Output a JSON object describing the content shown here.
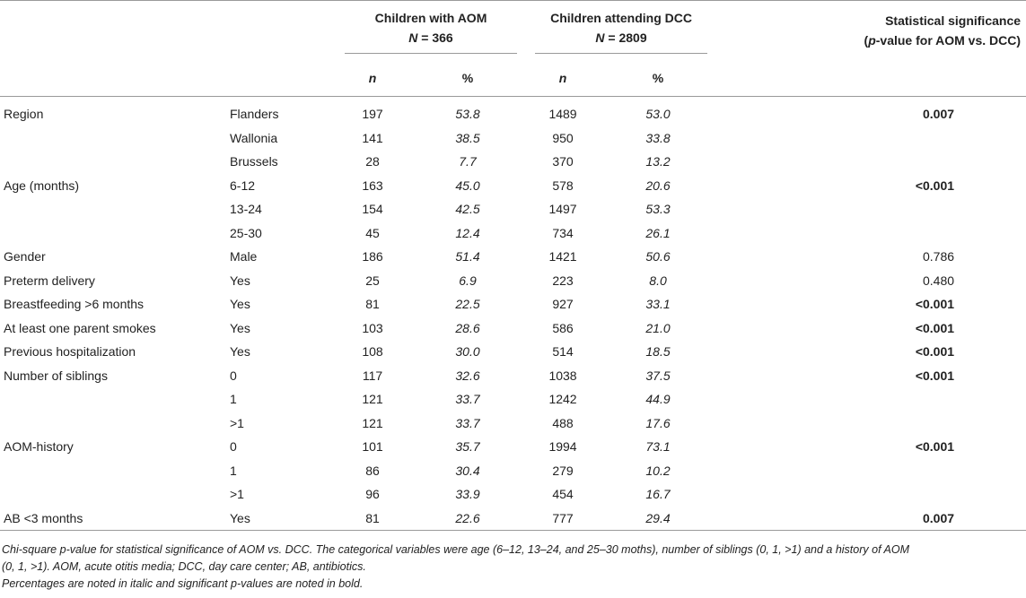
{
  "header": {
    "group_aom_title": "Children with AOM",
    "group_aom_n": "N = 366",
    "group_dcc_title": "Children attending DCC",
    "group_dcc_n": "N = 2809",
    "sig_title": "Statistical significance",
    "sig_sub": "(p-value for AOM vs. DCC)",
    "col_n": "n",
    "col_pct": "%"
  },
  "rows": [
    {
      "var": "Region",
      "cat": "Flanders",
      "aom_n": "197",
      "aom_pct": "53.8",
      "dcc_n": "1489",
      "dcc_pct": "53.0",
      "sig": "0.007",
      "sig_bold": true
    },
    {
      "var": "",
      "cat": "Wallonia",
      "aom_n": "141",
      "aom_pct": "38.5",
      "dcc_n": "950",
      "dcc_pct": "33.8",
      "sig": "",
      "sig_bold": false
    },
    {
      "var": "",
      "cat": "Brussels",
      "aom_n": "28",
      "aom_pct": "7.7",
      "dcc_n": "370",
      "dcc_pct": "13.2",
      "sig": "",
      "sig_bold": false
    },
    {
      "var": "Age (months)",
      "cat": "6-12",
      "aom_n": "163",
      "aom_pct": "45.0",
      "dcc_n": "578",
      "dcc_pct": "20.6",
      "sig": "<0.001",
      "sig_bold": true
    },
    {
      "var": "",
      "cat": "13-24",
      "aom_n": "154",
      "aom_pct": "42.5",
      "dcc_n": "1497",
      "dcc_pct": "53.3",
      "sig": "",
      "sig_bold": false
    },
    {
      "var": "",
      "cat": "25-30",
      "aom_n": "45",
      "aom_pct": "12.4",
      "dcc_n": "734",
      "dcc_pct": "26.1",
      "sig": "",
      "sig_bold": false
    },
    {
      "var": "Gender",
      "cat": "Male",
      "aom_n": "186",
      "aom_pct": "51.4",
      "dcc_n": "1421",
      "dcc_pct": "50.6",
      "sig": "0.786",
      "sig_bold": false
    },
    {
      "var": "Preterm delivery",
      "cat": "Yes",
      "aom_n": "25",
      "aom_pct": "6.9",
      "dcc_n": "223",
      "dcc_pct": "8.0",
      "sig": "0.480",
      "sig_bold": false
    },
    {
      "var": "Breastfeeding >6 months",
      "cat": "Yes",
      "aom_n": "81",
      "aom_pct": "22.5",
      "dcc_n": "927",
      "dcc_pct": "33.1",
      "sig": "<0.001",
      "sig_bold": true
    },
    {
      "var": "At least one parent smokes",
      "cat": "Yes",
      "aom_n": "103",
      "aom_pct": "28.6",
      "dcc_n": "586",
      "dcc_pct": "21.0",
      "sig": "<0.001",
      "sig_bold": true
    },
    {
      "var": "Previous hospitalization",
      "cat": "Yes",
      "aom_n": "108",
      "aom_pct": "30.0",
      "dcc_n": "514",
      "dcc_pct": "18.5",
      "sig": "<0.001",
      "sig_bold": true
    },
    {
      "var": "Number of siblings",
      "cat": "0",
      "aom_n": "117",
      "aom_pct": "32.6",
      "dcc_n": "1038",
      "dcc_pct": "37.5",
      "sig": "<0.001",
      "sig_bold": true
    },
    {
      "var": "",
      "cat": "1",
      "aom_n": "121",
      "aom_pct": "33.7",
      "dcc_n": "1242",
      "dcc_pct": "44.9",
      "sig": "",
      "sig_bold": false
    },
    {
      "var": "",
      "cat": ">1",
      "aom_n": "121",
      "aom_pct": "33.7",
      "dcc_n": "488",
      "dcc_pct": "17.6",
      "sig": "",
      "sig_bold": false
    },
    {
      "var": "AOM-history",
      "cat": "0",
      "aom_n": "101",
      "aom_pct": "35.7",
      "dcc_n": "1994",
      "dcc_pct": "73.1",
      "sig": "<0.001",
      "sig_bold": true
    },
    {
      "var": "",
      "cat": "1",
      "aom_n": "86",
      "aom_pct": "30.4",
      "dcc_n": "279",
      "dcc_pct": "10.2",
      "sig": "",
      "sig_bold": false
    },
    {
      "var": "",
      "cat": ">1",
      "aom_n": "96",
      "aom_pct": "33.9",
      "dcc_n": "454",
      "dcc_pct": "16.7",
      "sig": "",
      "sig_bold": false
    },
    {
      "var": "AB <3 months",
      "cat": "Yes",
      "aom_n": "81",
      "aom_pct": "22.6",
      "dcc_n": "777",
      "dcc_pct": "29.4",
      "sig": "0.007",
      "sig_bold": true
    }
  ],
  "notes": {
    "line1": "Chi-square p-value for statistical significance of AOM vs. DCC. The categorical variables were age (6–12, 13–24, and 25–30 moths), number of siblings (0, 1, >1) and a history of AOM",
    "line2": "(0, 1, >1). AOM, acute otitis media; DCC, day care center; AB, antibiotics.",
    "line3": "Percentages are noted in italic and significant p-values are noted in bold."
  }
}
